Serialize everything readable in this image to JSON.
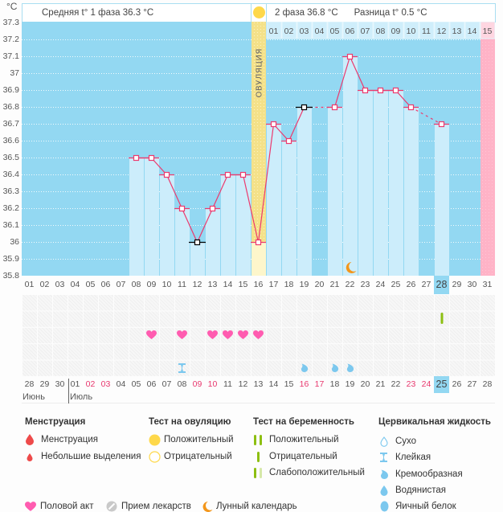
{
  "header": {
    "unit": "°C",
    "phase1_label": "Средняя t° 1 фаза 36.3 °C",
    "phase2_label": "2 фаза 36.8 °C",
    "difference_label": "Разница t° 0.5 °C",
    "ovulation_label": "ОВУЛЯЦИЯ"
  },
  "chart_data": {
    "type": "line",
    "title": "",
    "xlabel": "",
    "ylabel": "°C",
    "ylim": [
      35.8,
      37.3
    ],
    "grid": true,
    "yticks": [
      "37.3",
      "37.2",
      "37.1",
      "37",
      "36.9",
      "36.8",
      "36.7",
      "36.6",
      "36.5",
      "36.4",
      "36.3",
      "36.2",
      "36.1",
      "36",
      "35.9",
      "35.8"
    ],
    "x": [
      "01",
      "02",
      "03",
      "04",
      "05",
      "06",
      "07",
      "08",
      "09",
      "10",
      "11",
      "12",
      "13",
      "14",
      "15",
      "16",
      "17",
      "18",
      "19",
      "20",
      "21",
      "22",
      "23",
      "24",
      "25",
      "26",
      "27",
      "28",
      "29",
      "30",
      "31"
    ],
    "series": [
      {
        "name": "Базальная температура",
        "values": [
          null,
          null,
          null,
          null,
          null,
          null,
          null,
          36.5,
          36.5,
          36.4,
          36.2,
          36.0,
          36.2,
          36.4,
          36.4,
          36.0,
          36.7,
          36.6,
          36.8,
          null,
          36.8,
          37.1,
          36.9,
          36.9,
          36.9,
          36.8,
          null,
          36.7,
          null,
          null,
          null
        ]
      }
    ],
    "excluded_days": [
      12,
      19
    ],
    "ovulation_day": 16,
    "next_cycle_day": 31,
    "today_day": 28,
    "phase2_day_labels": [
      "01",
      "02",
      "03",
      "04",
      "05",
      "06",
      "07",
      "08",
      "09",
      "10",
      "11",
      "12",
      "13",
      "14",
      "15"
    ],
    "moon_days": [
      22
    ]
  },
  "calendar": {
    "dates": [
      "28",
      "29",
      "30",
      "01",
      "02",
      "03",
      "04",
      "05",
      "06",
      "07",
      "08",
      "09",
      "10",
      "11",
      "12",
      "13",
      "14",
      "15",
      "16",
      "17",
      "18",
      "19",
      "20",
      "21",
      "22",
      "23",
      "24",
      "25",
      "26",
      "27",
      "28"
    ],
    "weekend_days": [
      5,
      6,
      12,
      13,
      19,
      20,
      26,
      27
    ],
    "today_day": 28,
    "months": [
      {
        "label": "Июнь",
        "first_day": 1
      },
      {
        "label": "Июль",
        "first_day": 4
      }
    ]
  },
  "symptoms": [
    {
      "day": 28,
      "category": "pregnancy_test",
      "type": "pregnancy-negative"
    },
    {
      "day": 9,
      "category": "intercourse",
      "type": "heart"
    },
    {
      "day": 11,
      "category": "intercourse",
      "type": "heart"
    },
    {
      "day": 13,
      "category": "intercourse",
      "type": "heart"
    },
    {
      "day": 14,
      "category": "intercourse",
      "type": "heart"
    },
    {
      "day": 15,
      "category": "intercourse",
      "type": "heart"
    },
    {
      "day": 16,
      "category": "intercourse",
      "type": "heart"
    },
    {
      "day": 11,
      "category": "cervical_fluid",
      "type": "sticky"
    },
    {
      "day": 19,
      "category": "cervical_fluid",
      "type": "creamy"
    },
    {
      "day": 21,
      "category": "cervical_fluid",
      "type": "creamy"
    },
    {
      "day": 22,
      "category": "cervical_fluid",
      "type": "creamy"
    }
  ],
  "legend": {
    "menstruation": {
      "title": "Менструация",
      "items": [
        {
          "label": "Менструация"
        },
        {
          "label": "Небольшие выделения"
        }
      ]
    },
    "ovulation_test": {
      "title": "Тест на овуляцию",
      "items": [
        {
          "label": "Положительный"
        },
        {
          "label": "Отрицательный"
        }
      ]
    },
    "pregnancy_test": {
      "title": "Тест на беременность",
      "items": [
        {
          "label": "Положительный"
        },
        {
          "label": "Отрицательный"
        },
        {
          "label": "Слабоположительный"
        }
      ]
    },
    "cervical_fluid": {
      "title": "Цервикальная жидкость",
      "items": [
        {
          "label": "Сухо"
        },
        {
          "label": "Клейкая"
        },
        {
          "label": "Кремообразная"
        },
        {
          "label": "Водянистая"
        },
        {
          "label": "Яичный белок"
        }
      ]
    },
    "other": [
      {
        "label": "Половой акт"
      },
      {
        "label": "Прием лекарств"
      },
      {
        "label": "Лунный календарь"
      }
    ]
  },
  "colors": {
    "plot_bg": "#93d8f2",
    "bar": "#ccedfb",
    "header_cell": "#cfeefb",
    "line": "#ec3a6e",
    "excluded": "#000000",
    "ovulation": "#f4e189",
    "ovulation_below": "#fdf6cb",
    "next_cycle": "#ffb3c7",
    "header_next_cycle": "#ffd6e1",
    "heart": "#ff5cb0",
    "fluid": "#7cc8ee",
    "preg_test": "#8dbf12",
    "moon": "#f3961a"
  }
}
